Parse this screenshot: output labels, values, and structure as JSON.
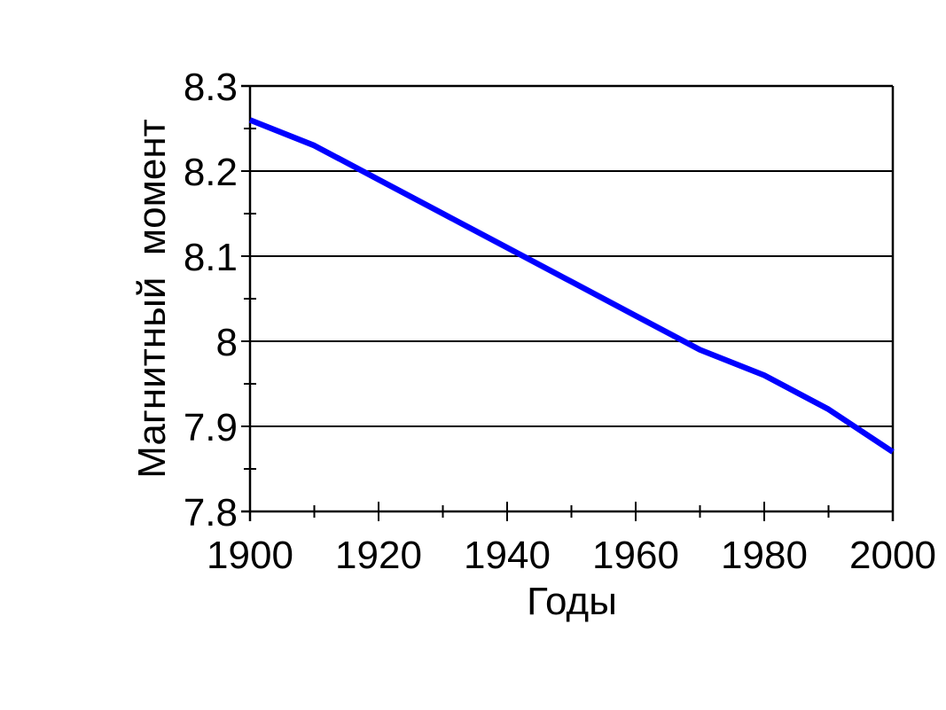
{
  "page": {
    "background": "#ffffff"
  },
  "chart_data": {
    "type": "line",
    "title": "",
    "xlabel": "Годы",
    "ylabel": "Магнитный  момент",
    "x": [
      1900,
      1910,
      1920,
      1930,
      1940,
      1950,
      1960,
      1970,
      1980,
      1990,
      2000
    ],
    "series": [
      {
        "name": "Магнитный момент",
        "color": "#0000ff",
        "values": [
          8.26,
          8.23,
          8.19,
          8.15,
          8.11,
          8.07,
          8.03,
          7.99,
          7.96,
          7.92,
          7.87
        ]
      }
    ],
    "xlim": [
      1900,
      2000
    ],
    "ylim": [
      7.8,
      8.3
    ],
    "x_major_ticks": [
      1900,
      1920,
      1940,
      1960,
      1980,
      2000
    ],
    "x_minor_ticks": [
      1910,
      1930,
      1950,
      1970,
      1990
    ],
    "y_major_ticks": [
      8.3,
      8.2,
      8.1,
      8.0,
      7.9,
      7.8
    ],
    "y_minor_ticks": [
      8.25,
      8.15,
      8.05,
      7.95,
      7.85
    ],
    "x_tick_labels": [
      "1900",
      "1920",
      "1940",
      "1960",
      "1980",
      "2000"
    ],
    "y_tick_labels": [
      "8.3",
      "8.2",
      "8.1",
      "8",
      "7.9",
      "7.8"
    ],
    "grid": "horizontal-major",
    "legend_position": "none",
    "frame": true,
    "axis_color": "#000000",
    "grid_color": "#000000",
    "line_color": "#0000ff",
    "background_color": "#ffffff"
  }
}
